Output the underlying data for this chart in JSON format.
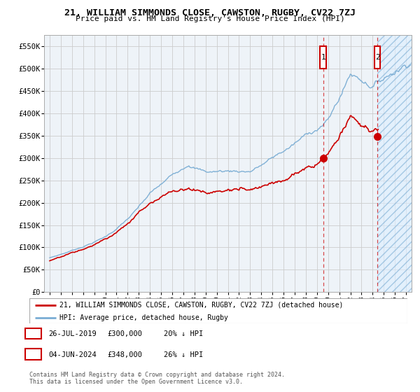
{
  "title": "21, WILLIAM SIMMONDS CLOSE, CAWSTON, RUGBY, CV22 7ZJ",
  "subtitle": "Price paid vs. HM Land Registry's House Price Index (HPI)",
  "ylim": [
    0,
    575000
  ],
  "yticks": [
    0,
    50000,
    100000,
    150000,
    200000,
    250000,
    300000,
    350000,
    400000,
    450000,
    500000,
    550000
  ],
  "ytick_labels": [
    "£0",
    "£50K",
    "£100K",
    "£150K",
    "£200K",
    "£250K",
    "£300K",
    "£350K",
    "£400K",
    "£450K",
    "£500K",
    "£550K"
  ],
  "xlim_start": 1994.5,
  "xlim_end": 2027.5,
  "xticks": [
    1995,
    1996,
    1997,
    1998,
    1999,
    2000,
    2001,
    2002,
    2003,
    2004,
    2005,
    2006,
    2007,
    2008,
    2009,
    2010,
    2011,
    2012,
    2013,
    2014,
    2015,
    2016,
    2017,
    2018,
    2019,
    2020,
    2021,
    2022,
    2023,
    2024,
    2025,
    2026,
    2027
  ],
  "hpi_color": "#7aadd4",
  "price_color": "#cc0000",
  "annotation_color": "#cc0000",
  "grid_color": "#cccccc",
  "bg_color": "#eef3f8",
  "hatch_color": "#7aadd4",
  "sale1_x": 2019.57,
  "sale1_y": 300000,
  "sale1_label": "1",
  "sale1_date": "26-JUL-2019",
  "sale1_price": "£300,000",
  "sale1_hpi": "20% ↓ HPI",
  "sale2_x": 2024.42,
  "sale2_y": 348000,
  "sale2_label": "2",
  "sale2_date": "04-JUN-2024",
  "sale2_price": "£348,000",
  "sale2_hpi": "26% ↓ HPI",
  "legend_line1": "21, WILLIAM SIMMONDS CLOSE, CAWSTON, RUGBY, CV22 7ZJ (detached house)",
  "legend_line2": "HPI: Average price, detached house, Rugby",
  "footnote": "Contains HM Land Registry data © Crown copyright and database right 2024.\nThis data is licensed under the Open Government Licence v3.0."
}
